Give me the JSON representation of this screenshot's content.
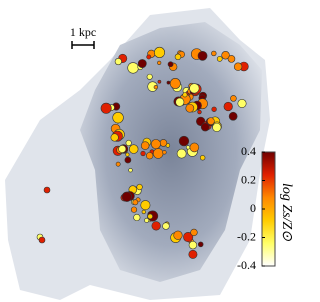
{
  "scale_bar": {
    "label": "1 kpc"
  },
  "colorbar": {
    "label": "log Zs/Z⊙",
    "lim": [
      -0.4,
      0.4
    ],
    "ticks": [
      0.4,
      0.2,
      0,
      -0.2,
      -0.4
    ],
    "colors": [
      "#ffffff",
      "#ffff66",
      "#ffcc00",
      "#ff8800",
      "#e02000",
      "#700000"
    ]
  }
}
